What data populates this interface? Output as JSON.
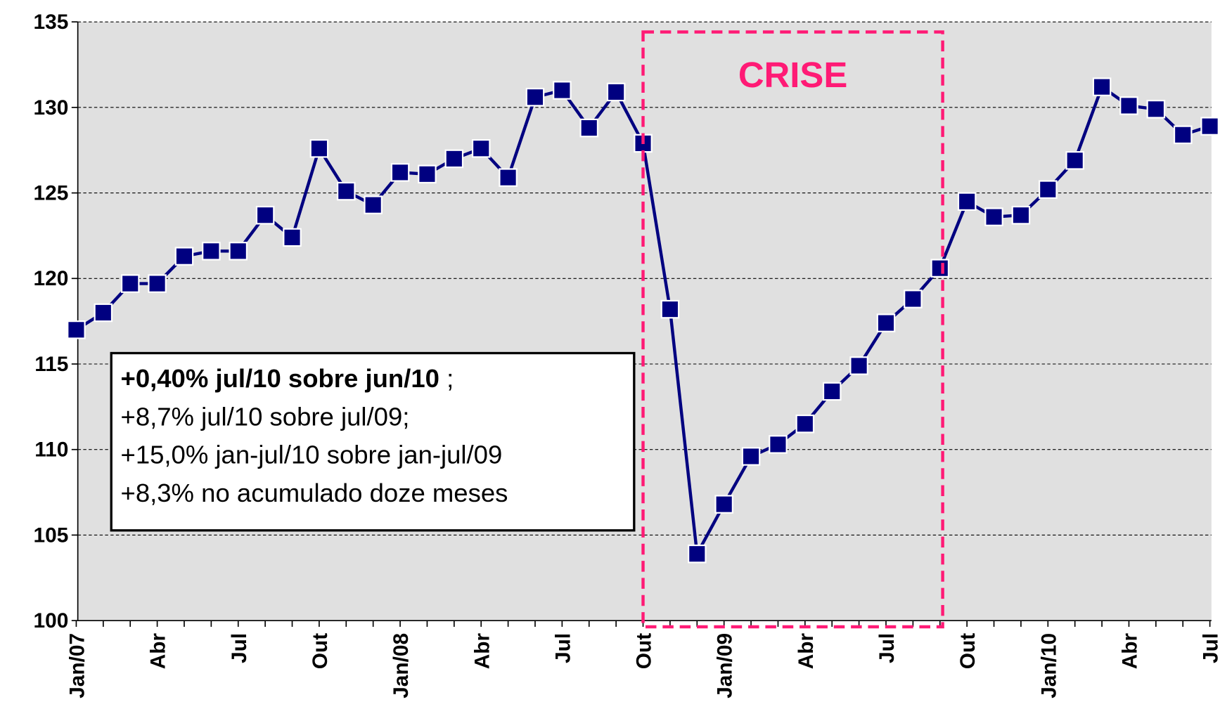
{
  "chart_data": {
    "type": "line",
    "categories": [
      "Jan/07",
      null,
      null,
      "Abr",
      null,
      null,
      "Jul",
      null,
      null,
      "Out",
      null,
      null,
      "Jan/08",
      null,
      null,
      "Abr",
      null,
      null,
      "Jul",
      null,
      null,
      "Out",
      null,
      null,
      "Jan/09",
      null,
      null,
      "Abr",
      null,
      null,
      "Jul",
      null,
      null,
      "Out",
      null,
      null,
      "Jan/10",
      null,
      null,
      "Abr",
      null,
      null,
      "Jul"
    ],
    "values": [
      117.0,
      118.0,
      119.7,
      119.7,
      121.3,
      121.6,
      121.6,
      123.7,
      122.4,
      127.6,
      125.1,
      124.3,
      126.2,
      126.1,
      127.0,
      127.6,
      125.9,
      130.6,
      131.0,
      128.8,
      130.9,
      127.9,
      118.2,
      103.9,
      106.8,
      109.6,
      110.3,
      111.5,
      113.4,
      114.9,
      117.4,
      118.8,
      120.6,
      124.5,
      123.6,
      123.7,
      125.2,
      126.9,
      131.2,
      130.1,
      129.9,
      128.4,
      128.9
    ],
    "color": "#000080",
    "ylim": [
      100,
      135
    ],
    "yticks": [
      100,
      105,
      110,
      115,
      120,
      125,
      130,
      135
    ],
    "grid": true,
    "annotation_bold": "+0,40% jul/10 sobre jun/10",
    "annotation_bold_suffix": " ;",
    "annotation_lines": [
      "+8,7% jul/10 sobre jul/09;",
      "+15,0% jan-jul/10 sobre jan-jul/09",
      "+8,3% no acumulado doze meses"
    ],
    "highlight_label": "CRISE"
  }
}
